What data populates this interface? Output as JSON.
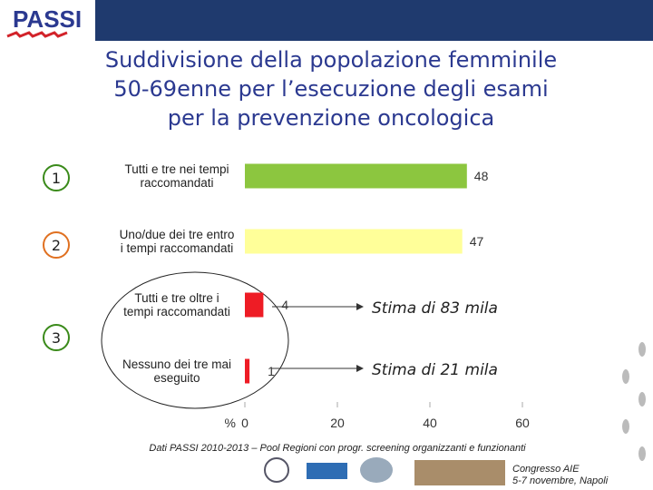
{
  "logo": "PASSI",
  "chart_data": {
    "type": "hbar",
    "title": [
      "Suddivisione della popolazione femminile",
      "50-69enne per l’esecuzione degli esami",
      "per la prevenzione oncologica"
    ],
    "categories": [
      "Tutti e tre nei tempi raccomandati",
      "Uno/due dei tre entro i tempi raccomandati",
      "Tutti e tre oltre i tempi raccomandati",
      "Nessuno dei tre mai eseguito"
    ],
    "values": [
      48,
      47,
      4,
      1
    ],
    "colors": [
      "#8cc63f",
      "#ffff99",
      "#ee1c25",
      "#ee1c25"
    ],
    "xlim": [
      0,
      60
    ],
    "xticks": [
      0,
      20,
      40,
      60
    ],
    "xlabel": "%",
    "groups": [
      "1",
      "2",
      "3"
    ],
    "annotations": [
      "Stima di 83 mila",
      "Stima di 21 mila"
    ]
  },
  "source": "Dati PASSI 2010-2013 – Pool Regioni con progr. screening organizzanti e funzionanti",
  "event": [
    "Congresso AIE",
    "5-7 novembre, Napoli"
  ]
}
